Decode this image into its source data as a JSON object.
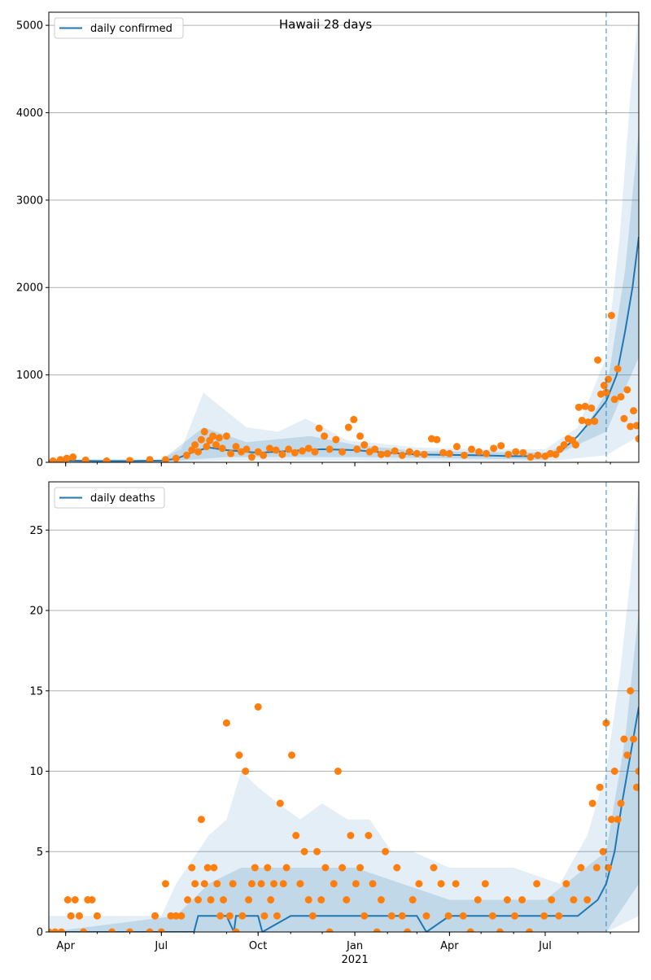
{
  "title": "Hawaii 28 days",
  "colors": {
    "model": "#1f77b4",
    "observed": "#ff7f0e",
    "band": "#1f77b4",
    "grid": "#b0b0b0"
  },
  "chart_data": [
    {
      "type": "line",
      "legend": "daily confirmed",
      "legend_position": "top-left",
      "grid": true,
      "xlim": [
        "2020-03-16",
        "2021-09-28"
      ],
      "ylim": [
        0,
        5150
      ],
      "yticks": [
        0,
        1000,
        2000,
        3000,
        4000,
        5000
      ],
      "forecast_start": "2021-08-28",
      "model_series": {
        "name": "daily confirmed",
        "x": [
          "2020-03-16",
          "2020-04-01",
          "2020-05-01",
          "2020-06-01",
          "2020-07-01",
          "2020-07-15",
          "2020-08-01",
          "2020-08-15",
          "2020-09-01",
          "2020-10-01",
          "2020-11-01",
          "2020-12-01",
          "2021-01-01",
          "2021-02-01",
          "2021-03-01",
          "2021-04-01",
          "2021-05-01",
          "2021-06-01",
          "2021-07-01",
          "2021-07-15",
          "2021-08-01",
          "2021-08-15",
          "2021-08-28",
          "2021-09-07",
          "2021-09-15",
          "2021-09-22",
          "2021-09-28"
        ],
        "y": [
          15,
          20,
          15,
          15,
          20,
          40,
          120,
          170,
          140,
          110,
          130,
          150,
          140,
          110,
          90,
          85,
          80,
          70,
          70,
          120,
          300,
          500,
          700,
          1000,
          1500,
          2000,
          2580
        ]
      },
      "band_outer_upper": {
        "x": [
          "2020-03-16",
          "2020-07-01",
          "2020-07-20",
          "2020-08-10",
          "2020-08-25",
          "2020-09-20",
          "2020-10-20",
          "2020-11-15",
          "2020-12-05",
          "2020-12-25",
          "2021-01-20",
          "2021-03-01",
          "2021-05-01",
          "2021-07-01",
          "2021-08-01",
          "2021-08-28",
          "2021-09-10",
          "2021-09-20",
          "2021-09-28"
        ],
        "y": [
          40,
          40,
          150,
          800,
          650,
          400,
          350,
          500,
          380,
          250,
          220,
          170,
          150,
          150,
          400,
          1200,
          2600,
          4200,
          5150
        ]
      },
      "band_outer_lower": {
        "x": [
          "2020-03-16",
          "2020-07-01",
          "2020-09-01",
          "2021-01-01",
          "2021-07-01",
          "2021-08-28",
          "2021-09-28"
        ],
        "y": [
          0,
          0,
          20,
          20,
          10,
          80,
          300
        ]
      },
      "band_inner_upper": {
        "x": [
          "2020-03-16",
          "2020-07-01",
          "2020-08-10",
          "2020-09-20",
          "2020-11-20",
          "2021-01-01",
          "2021-03-01",
          "2021-07-01",
          "2021-08-01",
          "2021-08-28",
          "2021-09-15",
          "2021-09-28"
        ],
        "y": [
          25,
          25,
          400,
          230,
          300,
          200,
          130,
          110,
          250,
          800,
          2200,
          3800
        ]
      },
      "band_inner_lower": {
        "x": [
          "2020-03-16",
          "2020-07-01",
          "2020-09-01",
          "2021-01-01",
          "2021-07-01",
          "2021-08-28",
          "2021-09-28"
        ],
        "y": [
          5,
          5,
          60,
          60,
          30,
          350,
          1200
        ]
      },
      "observed": {
        "x": [
          "2020-03-20",
          "2020-03-27",
          "2020-04-02",
          "2020-04-08",
          "2020-04-20",
          "2020-05-10",
          "2020-06-01",
          "2020-06-20",
          "2020-07-05",
          "2020-07-15",
          "2020-07-25",
          "2020-07-30",
          "2020-08-02",
          "2020-08-05",
          "2020-08-08",
          "2020-08-11",
          "2020-08-13",
          "2020-08-16",
          "2020-08-19",
          "2020-08-22",
          "2020-08-25",
          "2020-08-28",
          "2020-09-01",
          "2020-09-05",
          "2020-09-10",
          "2020-09-15",
          "2020-09-20",
          "2020-09-25",
          "2020-10-01",
          "2020-10-06",
          "2020-10-12",
          "2020-10-18",
          "2020-10-24",
          "2020-10-30",
          "2020-11-05",
          "2020-11-12",
          "2020-11-18",
          "2020-11-24",
          "2020-11-28",
          "2020-12-03",
          "2020-12-08",
          "2020-12-14",
          "2020-12-20",
          "2020-12-26",
          "2020-12-31",
          "2021-01-03",
          "2021-01-06",
          "2021-01-10",
          "2021-01-15",
          "2021-01-20",
          "2021-01-26",
          "2021-02-01",
          "2021-02-08",
          "2021-02-15",
          "2021-02-22",
          "2021-03-01",
          "2021-03-08",
          "2021-03-15",
          "2021-03-20",
          "2021-03-26",
          "2021-04-01",
          "2021-04-08",
          "2021-04-15",
          "2021-04-22",
          "2021-04-29",
          "2021-05-06",
          "2021-05-13",
          "2021-05-20",
          "2021-05-27",
          "2021-06-03",
          "2021-06-10",
          "2021-06-17",
          "2021-06-24",
          "2021-07-01",
          "2021-07-06",
          "2021-07-11",
          "2021-07-15",
          "2021-07-19",
          "2021-07-23",
          "2021-07-27",
          "2021-07-30",
          "2021-08-02",
          "2021-08-05",
          "2021-08-08",
          "2021-08-11",
          "2021-08-14",
          "2021-08-17",
          "2021-08-20",
          "2021-08-23",
          "2021-08-26",
          "2021-08-28",
          "2021-08-30",
          "2021-09-02",
          "2021-09-05",
          "2021-09-08",
          "2021-09-11",
          "2021-09-14",
          "2021-09-17",
          "2021-09-20",
          "2021-09-23",
          "2021-09-26",
          "2021-09-28"
        ],
        "y": [
          15,
          30,
          45,
          60,
          25,
          15,
          20,
          30,
          30,
          45,
          80,
          140,
          200,
          120,
          260,
          350,
          180,
          250,
          300,
          200,
          280,
          160,
          300,
          100,
          180,
          120,
          150,
          60,
          120,
          80,
          160,
          140,
          90,
          150,
          110,
          130,
          160,
          120,
          390,
          300,
          150,
          260,
          120,
          400,
          490,
          150,
          300,
          200,
          120,
          150,
          90,
          100,
          130,
          80,
          120,
          100,
          90,
          270,
          260,
          110,
          100,
          180,
          80,
          150,
          120,
          100,
          160,
          190,
          90,
          120,
          110,
          60,
          80,
          70,
          100,
          90,
          150,
          200,
          270,
          250,
          200,
          630,
          480,
          640,
          460,
          620,
          470,
          1170,
          780,
          880,
          800,
          950,
          1680,
          720,
          1070,
          750,
          500,
          830,
          410,
          590,
          420,
          270
        ]
      },
      "x_ticks": [
        "Apr",
        "Jul",
        "Oct",
        "Jan",
        "Apr",
        "Jul"
      ],
      "x_tick_dates": [
        "2020-04-01",
        "2020-07-01",
        "2020-10-01",
        "2021-01-01",
        "2021-04-01",
        "2021-07-01"
      ]
    },
    {
      "type": "line",
      "legend": "daily deaths",
      "legend_position": "top-left",
      "grid": true,
      "xlim": [
        "2020-03-16",
        "2021-09-28"
      ],
      "ylim": [
        0,
        28
      ],
      "yticks": [
        0,
        5,
        10,
        15,
        20,
        25
      ],
      "forecast_start": "2021-08-28",
      "xlabel_year": "2021",
      "model_series": {
        "name": "daily deaths",
        "x": [
          "2020-03-16",
          "2020-08-01",
          "2020-08-05",
          "2020-09-01",
          "2020-09-08",
          "2020-09-10",
          "2020-10-01",
          "2020-10-05",
          "2020-11-01",
          "2020-12-01",
          "2021-01-01",
          "2021-02-01",
          "2021-03-01",
          "2021-03-10",
          "2021-04-01",
          "2021-05-01",
          "2021-06-01",
          "2021-07-01",
          "2021-08-01",
          "2021-08-20",
          "2021-08-28",
          "2021-09-05",
          "2021-09-12",
          "2021-09-20",
          "2021-09-28"
        ],
        "y": [
          0,
          0,
          1,
          1,
          0,
          1,
          1,
          0,
          1,
          1,
          1,
          1,
          1,
          0,
          1,
          1,
          1,
          1,
          1,
          2,
          3,
          5,
          8,
          11,
          14
        ]
      },
      "band_outer_upper": {
        "x": [
          "2020-03-16",
          "2020-07-01",
          "2020-07-15",
          "2020-08-15",
          "2020-09-01",
          "2020-09-15",
          "2020-10-01",
          "2020-10-20",
          "2020-11-10",
          "2020-12-01",
          "2020-12-25",
          "2021-01-15",
          "2021-02-05",
          "2021-02-25",
          "2021-04-01",
          "2021-06-01",
          "2021-07-15",
          "2021-08-10",
          "2021-08-28",
          "2021-09-10",
          "2021-09-20",
          "2021-09-28"
        ],
        "y": [
          1,
          1,
          3,
          6,
          7,
          10,
          9,
          8,
          7,
          8,
          7,
          7,
          5,
          5,
          4,
          4,
          3,
          6,
          10,
          16,
          22,
          28
        ]
      },
      "band_outer_lower": {
        "x": [
          "2020-03-16",
          "2021-08-28",
          "2021-09-28"
        ],
        "y": [
          0,
          0,
          1
        ]
      },
      "band_inner_upper": {
        "x": [
          "2020-03-16",
          "2020-07-15",
          "2020-08-15",
          "2020-09-15",
          "2020-11-01",
          "2021-01-01",
          "2021-02-15",
          "2021-04-01",
          "2021-07-01",
          "2021-08-28",
          "2021-09-15",
          "2021-09-28"
        ],
        "y": [
          0,
          1,
          3,
          4,
          4,
          4,
          3,
          2,
          2,
          5,
          12,
          20
        ]
      },
      "band_inner_lower": {
        "x": [
          "2020-03-16",
          "2021-08-28",
          "2021-09-28"
        ],
        "y": [
          0,
          0,
          3
        ]
      },
      "observed": {
        "x": [
          "2020-03-16",
          "2020-03-22",
          "2020-03-28",
          "2020-04-03",
          "2020-04-06",
          "2020-04-10",
          "2020-04-14",
          "2020-04-18",
          "2020-04-22",
          "2020-04-26",
          "2020-05-01",
          "2020-05-15",
          "2020-06-01",
          "2020-06-20",
          "2020-06-25",
          "2020-07-01",
          "2020-07-05",
          "2020-07-10",
          "2020-07-15",
          "2020-07-20",
          "2020-07-26",
          "2020-07-30",
          "2020-08-02",
          "2020-08-05",
          "2020-08-08",
          "2020-08-11",
          "2020-08-14",
          "2020-08-17",
          "2020-08-20",
          "2020-08-23",
          "2020-08-26",
          "2020-08-29",
          "2020-09-01",
          "2020-09-04",
          "2020-09-07",
          "2020-09-10",
          "2020-09-13",
          "2020-09-16",
          "2020-09-19",
          "2020-09-22",
          "2020-09-25",
          "2020-09-28",
          "2020-10-01",
          "2020-10-04",
          "2020-10-07",
          "2020-10-10",
          "2020-10-13",
          "2020-10-16",
          "2020-10-19",
          "2020-10-22",
          "2020-10-25",
          "2020-10-28",
          "2020-11-02",
          "2020-11-06",
          "2020-11-10",
          "2020-11-14",
          "2020-11-18",
          "2020-11-22",
          "2020-11-26",
          "2020-11-30",
          "2020-12-04",
          "2020-12-08",
          "2020-12-12",
          "2020-12-16",
          "2020-12-20",
          "2020-12-24",
          "2020-12-28",
          "2021-01-02",
          "2021-01-06",
          "2021-01-10",
          "2021-01-14",
          "2021-01-18",
          "2021-01-22",
          "2021-01-26",
          "2021-01-30",
          "2021-02-05",
          "2021-02-10",
          "2021-02-15",
          "2021-02-20",
          "2021-02-25",
          "2021-03-03",
          "2021-03-10",
          "2021-03-17",
          "2021-03-24",
          "2021-03-31",
          "2021-04-07",
          "2021-04-14",
          "2021-04-21",
          "2021-04-28",
          "2021-05-05",
          "2021-05-12",
          "2021-05-19",
          "2021-05-26",
          "2021-06-02",
          "2021-06-09",
          "2021-06-16",
          "2021-06-23",
          "2021-06-30",
          "2021-07-07",
          "2021-07-14",
          "2021-07-21",
          "2021-07-28",
          "2021-08-04",
          "2021-08-10",
          "2021-08-15",
          "2021-08-19",
          "2021-08-22",
          "2021-08-25",
          "2021-08-28",
          "2021-08-30",
          "2021-09-02",
          "2021-09-05",
          "2021-09-08",
          "2021-09-11",
          "2021-09-14",
          "2021-09-17",
          "2021-09-20",
          "2021-09-23",
          "2021-09-26",
          "2021-09-28"
        ],
        "y": [
          0,
          0,
          0,
          2,
          1,
          2,
          1,
          0,
          2,
          2,
          1,
          0,
          0,
          0,
          1,
          0,
          3,
          1,
          1,
          1,
          2,
          4,
          3,
          2,
          7,
          3,
          4,
          2,
          4,
          3,
          1,
          2,
          13,
          1,
          3,
          0,
          11,
          1,
          10,
          2,
          3,
          4,
          14,
          3,
          1,
          4,
          2,
          3,
          1,
          8,
          3,
          4,
          11,
          6,
          3,
          5,
          2,
          1,
          5,
          2,
          4,
          0,
          3,
          10,
          4,
          2,
          6,
          3,
          4,
          1,
          6,
          3,
          0,
          2,
          5,
          1,
          4,
          1,
          0,
          2,
          3,
          1,
          4,
          3,
          1,
          3,
          1,
          0,
          2,
          3,
          1,
          0,
          2,
          1,
          2,
          0,
          3,
          1,
          2,
          1,
          3,
          2,
          4,
          2,
          8,
          4,
          9,
          5,
          13,
          4,
          7,
          10,
          7,
          8,
          12,
          11,
          15,
          12,
          9,
          10
        ]
      },
      "x_ticks": [
        "Apr",
        "Jul",
        "Oct",
        "Jan",
        "Apr",
        "Jul"
      ],
      "x_tick_dates": [
        "2020-04-01",
        "2020-07-01",
        "2020-10-01",
        "2021-01-01",
        "2021-04-01",
        "2021-07-01"
      ]
    }
  ]
}
